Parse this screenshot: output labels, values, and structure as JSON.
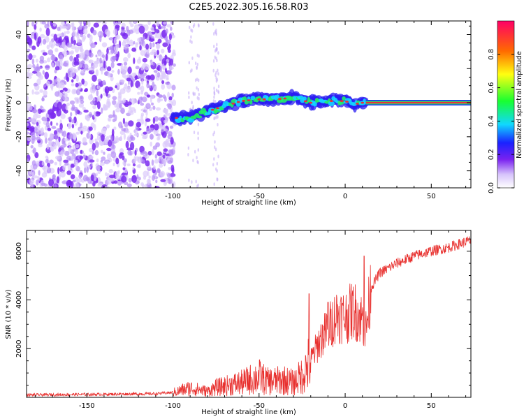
{
  "title": "C2E5.2022.305.16.58.R03",
  "colors": {
    "snr_line": "#e8312f",
    "track_core": "#e8303a",
    "speckle": "#7b2cf0",
    "frame": "#000000"
  },
  "chart_data": [
    {
      "type": "heatmap",
      "xlabel": "Height of straight line (km)",
      "ylabel": "Frequency (Hz)",
      "xlim": [
        -185,
        73
      ],
      "ylim": [
        -50,
        48
      ],
      "x_ticks": [
        -150,
        -100,
        -50,
        0,
        50
      ],
      "y_ticks": [
        -40,
        -20,
        0,
        20,
        40
      ],
      "grid": false,
      "track": {
        "x": [
          -100,
          -90,
          -80,
          -70,
          -60,
          -50,
          -40,
          -30,
          -20,
          -10,
          0,
          5,
          10,
          20,
          73
        ],
        "freq": [
          -9,
          -9,
          -5,
          -2,
          1,
          2,
          2,
          3,
          0,
          1,
          1,
          -1,
          0,
          0,
          0
        ]
      },
      "noise_region_x": [
        -185,
        -100
      ],
      "colorbar": {
        "label": "Normalized spectral amplitude",
        "range": [
          0.0,
          1.0
        ],
        "ticks": [
          "0.0",
          "0.2",
          "0.4",
          "0.6",
          "0.8"
        ],
        "tick_values": [
          0.0,
          0.2,
          0.4,
          0.6,
          0.8
        ]
      }
    },
    {
      "type": "line",
      "xlabel": "Height of straight line (km)",
      "ylabel": "SNR (10 * v/v)",
      "xlim": [
        -185,
        73
      ],
      "ylim": [
        0,
        6850
      ],
      "x_ticks": [
        -150,
        -100,
        -50,
        0,
        50
      ],
      "y_ticks": [
        2000,
        4000,
        6000
      ],
      "grid": false,
      "series": [
        {
          "x": [
            -185,
            -150,
            -110,
            -100,
            -90,
            -80,
            -75,
            -60,
            -50,
            -45,
            -35,
            -30,
            -25,
            -20,
            -15,
            -10,
            -5,
            0,
            5,
            10,
            12,
            15,
            20,
            30,
            40,
            50,
            60,
            73
          ],
          "values": [
            100,
            120,
            150,
            200,
            380,
            250,
            400,
            600,
            850,
            650,
            700,
            600,
            900,
            1500,
            2300,
            2800,
            3400,
            3300,
            3600,
            3200,
            2700,
            4500,
            5100,
            5500,
            5800,
            6000,
            6150,
            6450
          ]
        }
      ],
      "spikes": [
        {
          "x": -21,
          "value": 4250
        },
        {
          "x": -10,
          "value": 3900
        },
        {
          "x": 11,
          "value": 5800
        }
      ]
    }
  ]
}
